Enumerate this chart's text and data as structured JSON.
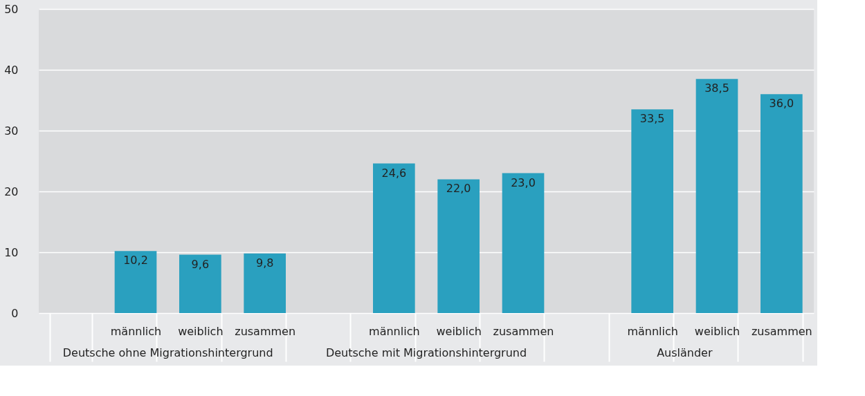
{
  "chart_data": {
    "type": "bar",
    "categories": [
      null,
      "männlich",
      "weiblich",
      "zusammen",
      null,
      "männlich",
      "weiblich",
      "zusammen",
      null,
      "männlich",
      "weiblich",
      "zusammen"
    ],
    "values": [
      null,
      10.2,
      9.6,
      9.8,
      null,
      24.6,
      22.0,
      23.0,
      null,
      33.5,
      38.5,
      36.0
    ],
    "value_labels": [
      null,
      "10,2",
      "9,6",
      "9,8",
      null,
      "24,6",
      "22,0",
      "23,0",
      null,
      "33,5",
      "38,5",
      "36,0"
    ],
    "color": "#2aa0bf",
    "ylim": [
      0,
      50
    ],
    "yticks": [
      0,
      10,
      20,
      30,
      40,
      50
    ],
    "grid": "y",
    "annotations": [
      "Deutsche ohne Migrationshintergrund",
      "Deutsche mit Migrationshintergrund",
      "Ausländer"
    ]
  }
}
